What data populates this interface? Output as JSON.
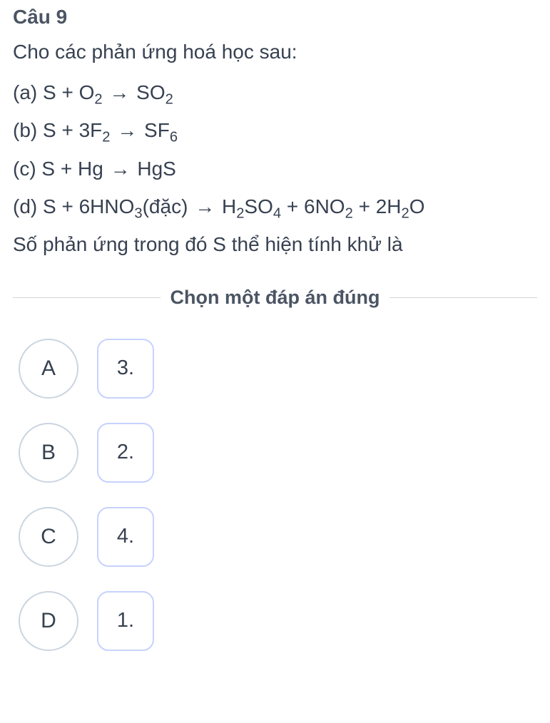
{
  "header": "Câu 9",
  "intro": "Cho các phản ứng hoá học sau:",
  "equations": {
    "a_label": "(a) S + O",
    "a_sub1": "2",
    "a_mid": " ",
    "a_prod": " SO",
    "a_sub2": "2",
    "b_label": "(b) S + 3F",
    "b_sub1": "2",
    "b_prod": " SF",
    "b_sub2": "6",
    "c_label": "(c) S + Hg ",
    "c_prod": " HgS",
    "d_label": "(d) S + 6HNO",
    "d_sub1": "3",
    "d_mid": "(đặc) ",
    "d_prod1": " H",
    "d_sub2": "2",
    "d_prod2": "SO",
    "d_sub3": "4",
    "d_prod3": " + 6NO",
    "d_sub4": "2",
    "d_prod4": " + 2H",
    "d_sub5": "2",
    "d_prod5": "O"
  },
  "final": "Số phản ứng trong đó S thể hiện tính khử là",
  "instruction": "Chọn một đáp án đúng",
  "arrow": "→",
  "options": [
    {
      "letter": "A",
      "value": "3."
    },
    {
      "letter": "B",
      "value": "2."
    },
    {
      "letter": "C",
      "value": "4."
    },
    {
      "letter": "D",
      "value": "1."
    }
  ],
  "colors": {
    "text": "#374151",
    "header": "#4b5563",
    "circle_border": "#cbd5e1",
    "square_border": "#c7d2fe",
    "divider": "#d1d5db",
    "background": "#ffffff"
  }
}
